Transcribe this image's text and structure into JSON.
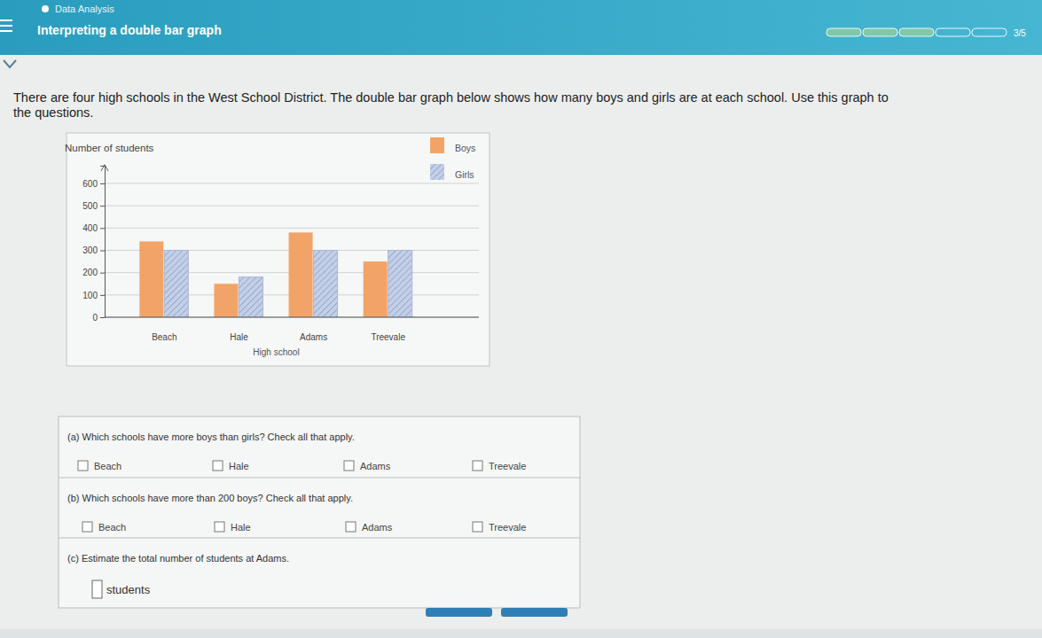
{
  "page": {
    "header": {
      "section": "Data Analysis",
      "title": "Interpreting a double bar graph",
      "progress": {
        "done": 3,
        "total": 5,
        "label": "3/5"
      }
    },
    "intro": [
      "There are four high schools in the West School District. The double bar graph below shows how many boys and girls are at each school. Use this graph to",
      "the questions."
    ],
    "questions": [
      {
        "prompt": "(a) Which schools have more boys than girls? Check all that apply.",
        "options": [
          "Beach",
          "Hale",
          "Adams",
          "Treevale"
        ]
      },
      {
        "prompt": "(b) Which schools have more than 200 boys? Check all that apply.",
        "options": [
          "Beach",
          "Hale",
          "Adams",
          "Treevale"
        ]
      },
      {
        "prompt": "(c) Estimate the total number of students at Adams.",
        "answer_unit": "students"
      }
    ]
  },
  "chart_data": {
    "type": "bar",
    "x_label": "High school",
    "y_label": "Number of students",
    "categories": [
      "Beach",
      "Hale",
      "Adams",
      "Treevale"
    ],
    "series": [
      {
        "name": "Boys",
        "color": "#f2a468",
        "values": [
          340,
          150,
          380,
          250
        ]
      },
      {
        "name": "Girls",
        "color": "#c3d0e8",
        "values": [
          300,
          180,
          300,
          300
        ]
      }
    ],
    "ylim": [
      0,
      680
    ],
    "yticks": [
      0,
      100,
      200,
      300,
      400,
      500,
      600
    ],
    "grid": true,
    "legend": "top-right"
  }
}
